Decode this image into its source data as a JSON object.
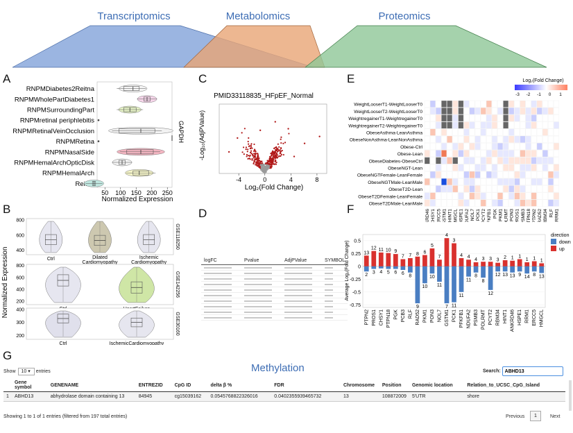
{
  "top_diagram": {
    "labels": [
      "Transcriptomics",
      "Metabolomics",
      "Proteomics"
    ],
    "colors": {
      "transcriptomics": "#8aa8dc",
      "metabolomics": "#e8a575",
      "proteomics": "#8fc797"
    }
  },
  "panels": {
    "A": "A",
    "B": "B",
    "C": "C",
    "D": "D",
    "E": "E",
    "F": "F",
    "G": "G"
  },
  "panel_a": {
    "chart_data": {
      "type": "box-violin",
      "categories": [
        "RNPMDiabetes2Reitna",
        "RNPMWholePartDiabetes1",
        "RNPMSurroundingPart",
        "RNPMretinal periphlebitis",
        "RNPMRetinalVeinOcclusion",
        "RNPMRetina",
        "RNPMNasalSide",
        "RNPMHemalArchOpticDisk",
        "RNPMHemalArch",
        "Reitna"
      ],
      "colors": [
        "#f5f5f5",
        "#f6d6ea",
        "#e8f5c8",
        "#f3f0c8",
        "#f2f2f2",
        "#f6f6f6",
        "#f4b6c2",
        "#f2f2f2",
        "#f4f4c8",
        "#bfe6df"
      ],
      "medians": [
        140,
        185,
        130,
        0,
        165,
        0,
        165,
        105,
        160,
        15
      ],
      "q1": [
        110,
        175,
        110,
        0,
        95,
        0,
        120,
        95,
        140,
        10
      ],
      "q3": [
        160,
        195,
        150,
        0,
        210,
        0,
        205,
        115,
        190,
        20
      ],
      "xlabel": "Normalized Expression",
      "ylabel": "GAPDH",
      "xticks": [
        50,
        100,
        150,
        200,
        250
      ],
      "xlim": [
        25,
        265
      ]
    }
  },
  "panel_b": {
    "ylabel": "Normalized Expression",
    "subplots": [
      {
        "id": "GSE118250",
        "yticks": [
          400,
          600,
          800
        ],
        "groups": [
          {
            "label": "Ctrl",
            "color": "#e6e6f0",
            "median": 540
          },
          {
            "label": "Dilated Cardiomyopathy",
            "color": "#cdc8b0",
            "median": 530
          },
          {
            "label": "Ischemic Cardiomyopathy",
            "color": "#e6e6ef",
            "median": 540
          }
        ]
      },
      {
        "id": "GSE142256",
        "yticks": [
          200,
          400,
          600,
          800
        ],
        "groups": [
          {
            "label": "Ctrl",
            "color": "#e6e6f0",
            "median": 550
          },
          {
            "label": "HeartFailure",
            "color": "#cfe6a6",
            "median": 430
          }
        ]
      },
      {
        "id": "GSE30160",
        "yticks": [
          200,
          300,
          400
        ],
        "groups": [
          {
            "label": "Ctrl",
            "color": "#e0e0ec",
            "median": 330
          },
          {
            "label": "IschemicCardiomyopathy",
            "color": "#e6e6ef",
            "median": 300
          }
        ]
      }
    ]
  },
  "panel_c": {
    "chart_data": {
      "type": "scatter",
      "title": "PMID33118835_HFpEF_Normal",
      "xlabel": "Log₂(Fold Change)",
      "ylabel": "-Log₁₀(AdjPValue)",
      "xticks": [
        -4,
        0,
        4,
        8
      ],
      "xlim": [
        -7,
        9.5
      ],
      "ylim": [
        0,
        9
      ]
    }
  },
  "panel_d": {
    "headers": [
      "logFC",
      "Pvalue",
      "AdjPValue",
      "SYMBOL"
    ],
    "rows": 10
  },
  "panel_e": {
    "legend_title": "Log₂(Fold Change)",
    "legend_ticks": [
      "-3",
      "-2",
      "-1",
      "0",
      "1"
    ],
    "rows": [
      "WeightLooserT1-WeightLooserT0",
      "WeightLooserT2-WeightLooserT0",
      "WeightregainerT1-WeightregainerT0",
      "WeightregainerT2-WeightregainerT0",
      "ObeseAsthma-LeanAsthma",
      "ObeseNonAsthma-LeanNonAsthma",
      "Obese-Ctrl",
      "Obese-Lean",
      "ObeseDiabetes-ObeseCtrl",
      "ObeseNGT-Lean",
      "ObeseNGTFemale-LeanFemale",
      "ObeseNGTMale-LeanMale",
      "ObeseT2D-Lean",
      "ObeseT2DFemale-LeanFemale",
      "ObeseT2DMale-LeanMale"
    ],
    "cols": [
      "ANKRD46",
      "CHSY1",
      "ERCC5",
      "GSTM1",
      "HINT1",
      "HMGCL",
      "HSPE1",
      "NDUFA2",
      "NOL7",
      "PCK1",
      "PCYT2",
      "PFKFB1",
      "PGK",
      "PKM1",
      "POLRMT",
      "PON3",
      "PROS1",
      "PSMB3",
      "PTPN18",
      "PTPN2",
      "RAD52",
      "RBM34",
      "RLF",
      "RRM1"
    ]
  },
  "panel_f": {
    "chart_data": {
      "type": "bar",
      "categories": [
        "PTPN2",
        "PROS1",
        "CHSY1",
        "PTPN18",
        "PGK",
        "PCB3",
        "RLF",
        "RAD52",
        "PKM1",
        "PON3",
        "NOL7",
        "GSTM1",
        "PCK1",
        "PFKFB1",
        "NDUFA2",
        "PSMB3",
        "POLRMT",
        "PCYT2",
        "RBM34",
        "HINT1",
        "ANKRD46",
        "HSPE1",
        "RRM1",
        "ERCC5",
        "HMGCL"
      ],
      "ylabel": "Average Log₂(Fold Change)",
      "yticks": [
        -0.75,
        -0.5,
        -0.25,
        0,
        0.25,
        0.5
      ],
      "ylim": [
        -0.8,
        0.62
      ],
      "legend_title": "direction",
      "legend": [
        {
          "name": "down",
          "color": "#4a7ec2"
        },
        {
          "name": "up",
          "color": "#d9312e"
        }
      ],
      "series": [
        {
          "name": "up",
          "values": [
            0.21,
            0.3,
            0.27,
            0.26,
            0.24,
            0.14,
            0.16,
            0.19,
            0.22,
            0.35,
            0.13,
            0.55,
            0.45,
            0.16,
            0.13,
            0.08,
            0.09,
            0.09,
            0.07,
            0.12,
            0.11,
            0.14,
            0.08,
            0.1,
            0.06
          ],
          "labels": [
            "13",
            "12",
            "11",
            "10",
            "9",
            "7",
            "7",
            "8",
            "6",
            "5",
            "7",
            "4",
            "3",
            "4",
            "4",
            "4",
            "3",
            "3",
            "3",
            "2",
            "1",
            "1",
            "1",
            "1",
            "1"
          ]
        },
        {
          "name": "down",
          "values": [
            -0.1,
            -0.05,
            -0.04,
            -0.05,
            -0.05,
            -0.07,
            -0.12,
            -0.72,
            -0.33,
            -0.14,
            -0.3,
            -0.72,
            -0.7,
            -0.5,
            -0.2,
            -0.12,
            -0.22,
            -0.46,
            -0.1,
            -0.1,
            -0.12,
            -0.1,
            -0.14,
            -0.1,
            -0.13
          ],
          "labels": [
            "2",
            "3",
            "4",
            "5",
            "6",
            "6",
            "8",
            "9",
            "10",
            "10",
            "11",
            "7",
            "11",
            "11",
            "11",
            "8",
            "8",
            "12",
            "12",
            "13",
            "13",
            "9",
            "14",
            "8",
            "13"
          ]
        }
      ]
    }
  },
  "panel_g": {
    "title": "Methylation",
    "show_label": "Show",
    "entries_value": "10",
    "entries_label": "entries",
    "search_label": "Search:",
    "search_value": "ABHD13",
    "headers": [
      "",
      "Gene symbol",
      "GENENAME",
      "ENTREZID",
      "CpG ID",
      "delta β %",
      "FDR",
      "Chromosome",
      "Position",
      "Genomic location",
      "Relation_to_UCSC_CpG_Island"
    ],
    "row": [
      "1",
      "ABHD13",
      "abhydrolase domain containing 13",
      "84945",
      "cg15039162",
      "0.0545768822326016",
      "0.0402355939465732",
      "13",
      "108872009",
      "5'UTR",
      "shore"
    ],
    "info": "Showing 1 to 1 of 1 entries (filtered from 197 total entries)",
    "previous": "Previous",
    "page": "1",
    "next": "Next"
  }
}
